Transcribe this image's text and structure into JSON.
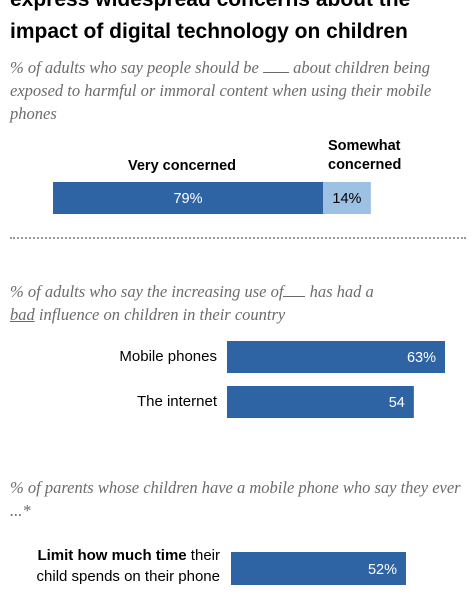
{
  "title_line1": "express widespread concerns about the",
  "title_line2": "impact of digital technology on children",
  "section1": {
    "subtitle_before": "% of adults who say people should be",
    "subtitle_after": "about children being exposed to harmful or immoral content when using their mobile phones",
    "label_very": "Very concerned",
    "label_somewhat_line1": "Somewhat",
    "label_somewhat_line2": "concerned"
  },
  "section2": {
    "subtitle_before": "% of adults who say the increasing use of",
    "subtitle_mid": "has had a",
    "subtitle_bad": "bad",
    "subtitle_after": "influence on children in their country"
  },
  "section3": {
    "subtitle": "% of parents whose children have a mobile phone who say they ever ...*",
    "row1_bold": "Limit how much time",
    "row1_rest1": " their",
    "row1_line2": "child spends on their phone"
  },
  "colors": {
    "dark_blue": "#2e64a4",
    "light_blue": "#9cc1e3",
    "text_on_dark": "#ffffff",
    "text_on_light": "#000000"
  },
  "chart_data": [
    {
      "type": "bar",
      "orientation": "horizontal-stacked",
      "categories": [
        "Very concerned",
        "Somewhat concerned"
      ],
      "values": [
        79,
        14
      ],
      "labels": [
        "79%",
        "14%"
      ],
      "xlim": [
        0,
        100
      ]
    },
    {
      "type": "bar",
      "orientation": "horizontal",
      "categories": [
        "Mobile phones",
        "The internet"
      ],
      "values": [
        63,
        54
      ],
      "labels": [
        "63%",
        "54"
      ],
      "xlim": [
        0,
        100
      ]
    },
    {
      "type": "bar",
      "orientation": "horizontal",
      "categories": [
        "Limit how much time their child spends on their phone"
      ],
      "values": [
        52
      ],
      "labels": [
        "52%"
      ],
      "xlim": [
        0,
        100
      ]
    }
  ]
}
